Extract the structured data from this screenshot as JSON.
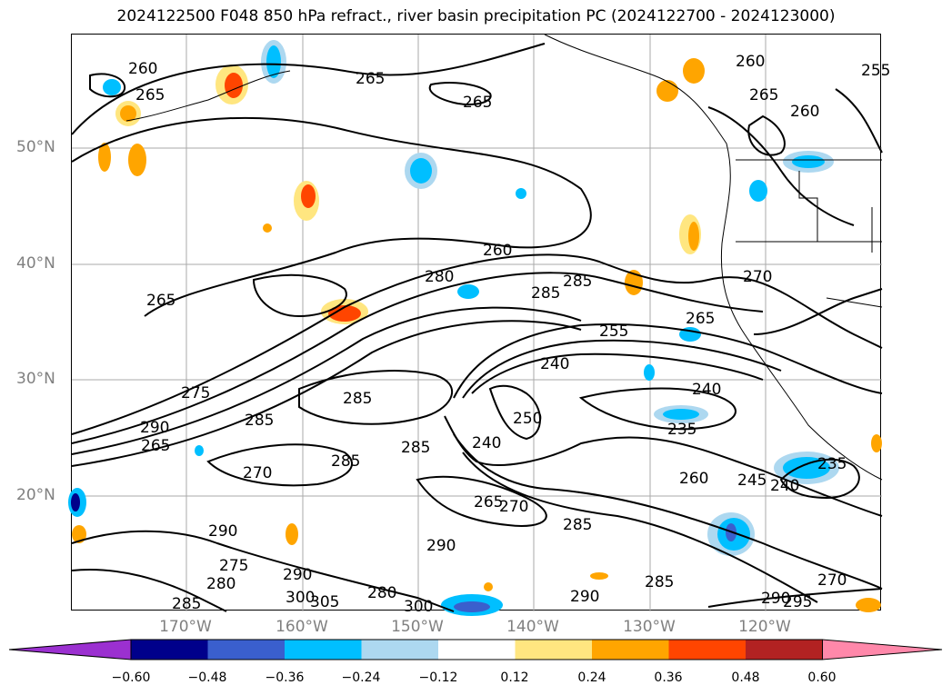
{
  "title": "2024122500 F048 850 hPa refract., river basin precipitation PC (2024122700 - 2024123000)",
  "lat_labels": [
    "50°N",
    "40°N",
    "30°N",
    "20°N"
  ],
  "lon_labels": [
    "170°W",
    "160°W",
    "150°W",
    "140°W",
    "130°W",
    "120°W"
  ],
  "colorbar": {
    "ticks": [
      "−0.60",
      "−0.48",
      "−0.36",
      "−0.24",
      "−0.12",
      "0.12",
      "0.24",
      "0.36",
      "0.48",
      "0.60"
    ],
    "colors": [
      "#9b30d0",
      "#00008b",
      "#3a5fcd",
      "#00bfff",
      "#add8f0",
      "#ffffff",
      "#ffe680",
      "#ffa500",
      "#ff4500",
      "#b22222",
      "#ff88aa"
    ]
  },
  "contour_labels": [
    "260",
    "265",
    "265",
    "265",
    "260",
    "265",
    "260",
    "255",
    "260",
    "280",
    "285",
    "285",
    "270",
    "265",
    "255",
    "240",
    "265",
    "275",
    "285",
    "240",
    "285",
    "250",
    "235",
    "290",
    "285",
    "265",
    "240",
    "245",
    "240",
    "235",
    "285",
    "270",
    "260",
    "265",
    "270",
    "285",
    "290",
    "290",
    "275",
    "280",
    "290",
    "285",
    "300",
    "305",
    "280",
    "300",
    "290",
    "285",
    "270",
    "290",
    "295"
  ]
}
